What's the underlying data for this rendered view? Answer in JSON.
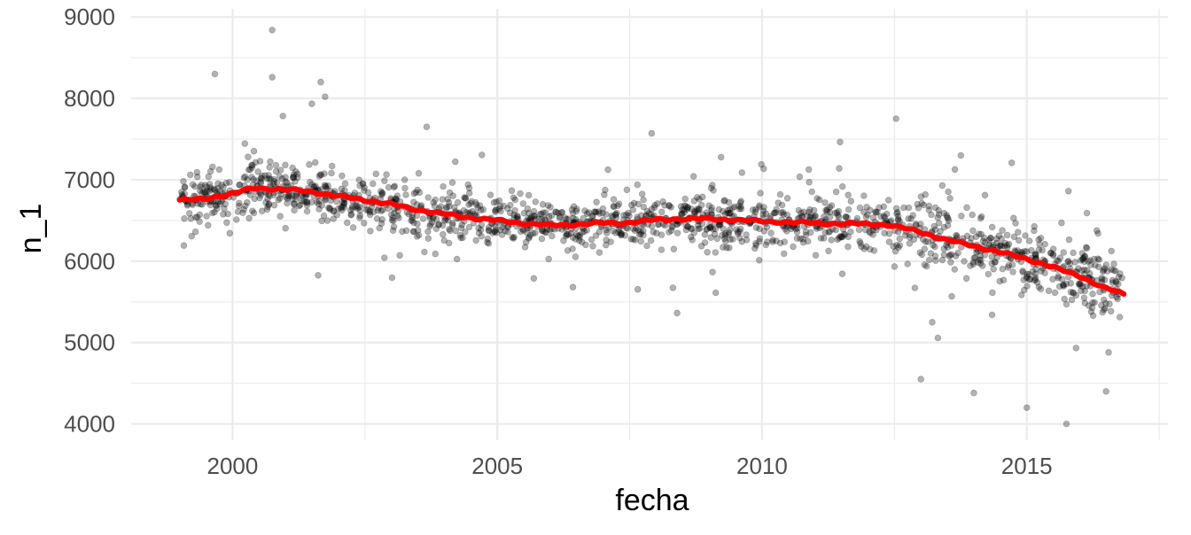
{
  "chart_data": {
    "type": "scatter",
    "xlabel": "fecha",
    "ylabel": "n_1",
    "x_axis": {
      "scale": "date",
      "range": [
        "1998-02-01",
        "2017-09-01"
      ],
      "ticks": [
        {
          "value": "2000-01-01",
          "label": "2000"
        },
        {
          "value": "2005-01-01",
          "label": "2005"
        },
        {
          "value": "2010-01-01",
          "label": "2010"
        },
        {
          "value": "2015-01-01",
          "label": "2015"
        }
      ]
    },
    "y_axis": {
      "range": [
        3800,
        9100
      ],
      "ticks": [
        4000,
        5000,
        6000,
        7000,
        8000,
        9000
      ],
      "tick_labels": [
        "4000",
        "5000",
        "6000",
        "7000",
        "8000",
        "9000"
      ]
    },
    "grid": true,
    "colors": {
      "points": "#000000",
      "trend": "#ff0000",
      "grid": "#ebebeb"
    },
    "points_style": {
      "alpha": 0.3
    },
    "series": [
      {
        "kind": "points",
        "notable_points": [
          {
            "x": "2000-10-01",
            "y": 8840
          },
          {
            "x": "1999-09-01",
            "y": 8300
          },
          {
            "x": "2000-10-01",
            "y": 8260
          },
          {
            "x": "2001-09-01",
            "y": 8200
          },
          {
            "x": "2001-10-01",
            "y": 8020
          },
          {
            "x": "2003-09-01",
            "y": 7650
          },
          {
            "x": "2007-12-01",
            "y": 7570
          },
          {
            "x": "2013-01-01",
            "y": 4550
          },
          {
            "x": "2014-01-01",
            "y": 4380
          },
          {
            "x": "2015-01-01",
            "y": 4200
          },
          {
            "x": "2015-10-01",
            "y": 4000
          },
          {
            "x": "2016-07-01",
            "y": 4400
          }
        ]
      },
      {
        "kind": "line",
        "x": [
          "1999-01-01",
          "1999-06-01",
          "2000-01-01",
          "2000-06-01",
          "2001-01-01",
          "2001-06-01",
          "2002-01-01",
          "2002-06-01",
          "2003-01-01",
          "2003-06-01",
          "2004-01-01",
          "2004-06-01",
          "2005-01-01",
          "2005-06-01",
          "2006-01-01",
          "2006-06-01",
          "2007-01-01",
          "2007-06-01",
          "2008-01-01",
          "2008-06-01",
          "2009-01-01",
          "2009-06-01",
          "2010-01-01",
          "2010-06-01",
          "2011-01-01",
          "2011-06-01",
          "2012-01-01",
          "2012-06-01",
          "2013-01-01",
          "2013-06-01",
          "2014-01-01",
          "2014-06-01",
          "2015-01-01",
          "2015-06-01",
          "2016-01-01",
          "2016-06-01",
          "2016-11-01"
        ],
        "y": [
          6750,
          6760,
          6830,
          6900,
          6880,
          6860,
          6800,
          6760,
          6700,
          6640,
          6580,
          6540,
          6500,
          6470,
          6440,
          6450,
          6470,
          6470,
          6510,
          6520,
          6520,
          6510,
          6490,
          6480,
          6470,
          6460,
          6460,
          6440,
          6360,
          6270,
          6190,
          6120,
          6030,
          5940,
          5820,
          5680,
          5600
        ]
      }
    ]
  }
}
